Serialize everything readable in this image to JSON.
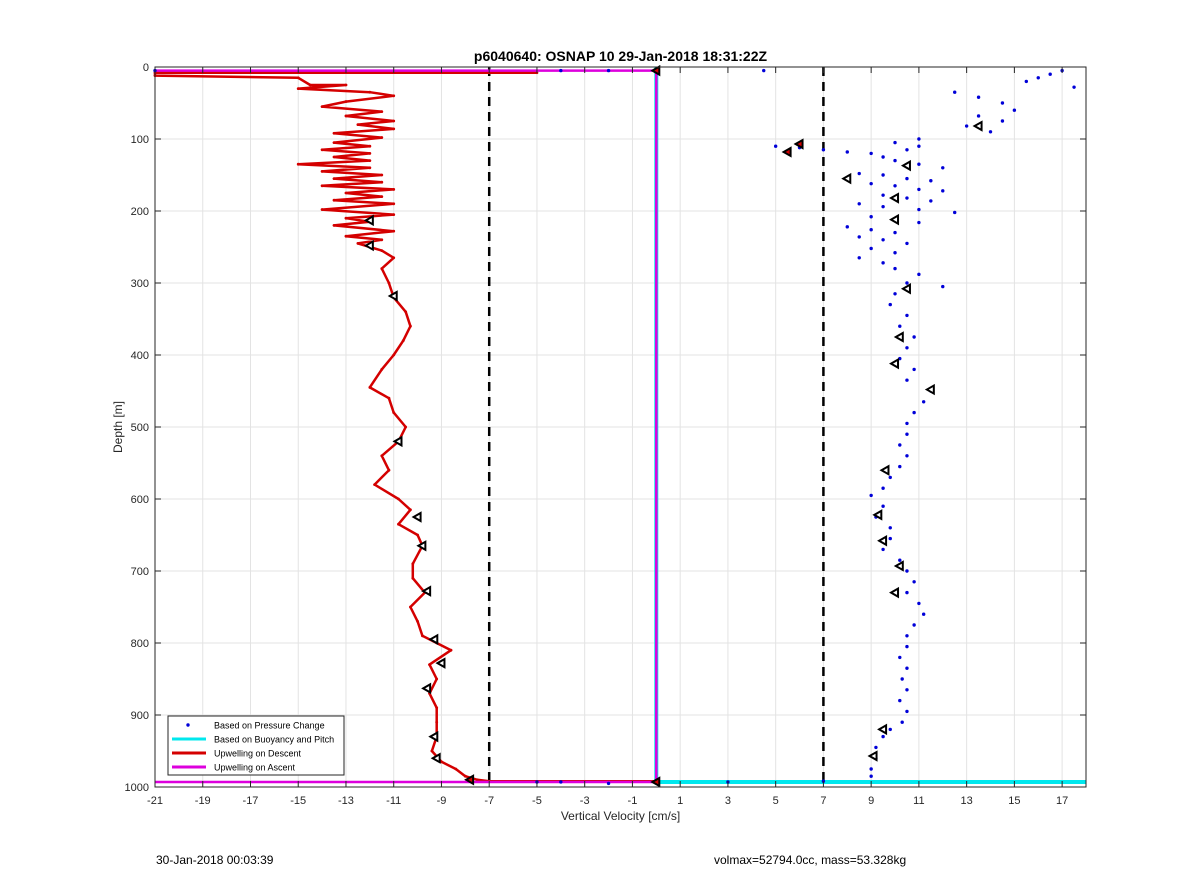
{
  "chart_data": {
    "type": "scatter",
    "title": "p6040640: OSNAP 10 29-Jan-2018 18:31:22Z",
    "xlabel": "Vertical Velocity [cm/s]",
    "ylabel": "Depth [m]",
    "xlim": [
      -21,
      18
    ],
    "ylim": [
      0,
      1000
    ],
    "y_reversed": true,
    "grid": true,
    "x_ticks": [
      -21,
      -19,
      -17,
      -15,
      -13,
      -11,
      -9,
      -7,
      -5,
      -3,
      -1,
      1,
      3,
      5,
      7,
      9,
      11,
      13,
      15,
      17
    ],
    "y_ticks": [
      0,
      100,
      200,
      300,
      400,
      500,
      600,
      700,
      800,
      900,
      1000
    ],
    "legend_position": "bottom-left",
    "colors": {
      "pressure": "#0000d8",
      "buoyancy": "#00e8ee",
      "descent": "#d40000",
      "ascent": "#dd00dd",
      "threshold": "#000000",
      "markers": "#000000",
      "grid": "#e3e3e3"
    },
    "legend": [
      {
        "label": "Based on Pressure Change",
        "style": "dot",
        "color": "#0000d8"
      },
      {
        "label": "Based on Buoyancy and Pitch",
        "style": "line",
        "color": "#00e8ee"
      },
      {
        "label": "Upwelling on Descent",
        "style": "line",
        "color": "#d40000"
      },
      {
        "label": "Upwelling on Ascent",
        "style": "line",
        "color": "#dd00dd"
      }
    ],
    "thresholds": [
      -7,
      7
    ],
    "series": [
      {
        "name": "Upwelling on Descent",
        "style": "line",
        "points": [
          [
            -5,
            8
          ],
          [
            -21,
            8
          ],
          [
            -21,
            12
          ],
          [
            -15,
            15
          ],
          [
            -14.5,
            25
          ],
          [
            -13,
            25
          ],
          [
            -15,
            30
          ],
          [
            -12,
            35
          ],
          [
            -11,
            40
          ],
          [
            -13,
            48
          ],
          [
            -14,
            55
          ],
          [
            -11.5,
            62
          ],
          [
            -13,
            68
          ],
          [
            -11,
            75
          ],
          [
            -12.5,
            80
          ],
          [
            -11,
            86
          ],
          [
            -13.5,
            92
          ],
          [
            -11.5,
            98
          ],
          [
            -13.5,
            105
          ],
          [
            -12,
            110
          ],
          [
            -14,
            115
          ],
          [
            -12,
            120
          ],
          [
            -13.5,
            125
          ],
          [
            -12,
            130
          ],
          [
            -15,
            135
          ],
          [
            -12,
            140
          ],
          [
            -14,
            145
          ],
          [
            -11.5,
            150
          ],
          [
            -13.5,
            155
          ],
          [
            -11.5,
            160
          ],
          [
            -14,
            165
          ],
          [
            -11,
            170
          ],
          [
            -13,
            175
          ],
          [
            -11.5,
            180
          ],
          [
            -13.5,
            185
          ],
          [
            -11,
            190
          ],
          [
            -14,
            198
          ],
          [
            -11,
            205
          ],
          [
            -13,
            210
          ],
          [
            -12,
            215
          ],
          [
            -13.5,
            220
          ],
          [
            -11,
            228
          ],
          [
            -13,
            235
          ],
          [
            -11.5,
            240
          ],
          [
            -12.5,
            245
          ],
          [
            -12,
            250
          ],
          [
            -11.5,
            255
          ],
          [
            -11,
            265
          ],
          [
            -11.5,
            280
          ],
          [
            -11.2,
            300
          ],
          [
            -11,
            320
          ],
          [
            -10.5,
            340
          ],
          [
            -10.3,
            360
          ],
          [
            -10.6,
            380
          ],
          [
            -11,
            400
          ],
          [
            -11.5,
            420
          ],
          [
            -12,
            445
          ],
          [
            -11.2,
            460
          ],
          [
            -11,
            480
          ],
          [
            -10.5,
            500
          ],
          [
            -10.8,
            520
          ],
          [
            -11.5,
            540
          ],
          [
            -11.2,
            560
          ],
          [
            -11.8,
            580
          ],
          [
            -10.8,
            600
          ],
          [
            -10.3,
            615
          ],
          [
            -10.8,
            635
          ],
          [
            -10,
            650
          ],
          [
            -9.8,
            665
          ],
          [
            -10.2,
            690
          ],
          [
            -10.2,
            710
          ],
          [
            -9.7,
            730
          ],
          [
            -10.3,
            750
          ],
          [
            -10,
            770
          ],
          [
            -9.8,
            790
          ],
          [
            -9.2,
            800
          ],
          [
            -8.6,
            810
          ],
          [
            -9.5,
            830
          ],
          [
            -9.2,
            850
          ],
          [
            -9.5,
            870
          ],
          [
            -9.2,
            890
          ],
          [
            -9.2,
            910
          ],
          [
            -9.2,
            930
          ],
          [
            -9.4,
            950
          ],
          [
            -9,
            965
          ],
          [
            -8.4,
            975
          ],
          [
            -8,
            985
          ],
          [
            -7.5,
            990
          ],
          [
            -7,
            992
          ],
          [
            0,
            992
          ]
        ]
      },
      {
        "name": "Upwelling on Ascent",
        "style": "line",
        "points": [
          [
            -21,
            5
          ],
          [
            0,
            5
          ],
          [
            0,
            993
          ],
          [
            -21,
            993
          ]
        ]
      },
      {
        "name": "Based on Buoyancy and Pitch",
        "style": "line",
        "points": [
          [
            0,
            0
          ],
          [
            0,
            993
          ],
          [
            18,
            993
          ]
        ]
      },
      {
        "name": "Based on Pressure Change",
        "style": "dots",
        "points": [
          [
            17,
            5
          ],
          [
            16.5,
            10
          ],
          [
            16,
            15
          ],
          [
            15.5,
            20
          ],
          [
            17.5,
            28
          ],
          [
            12.5,
            35
          ],
          [
            13.5,
            42
          ],
          [
            14.5,
            50
          ],
          [
            15,
            60
          ],
          [
            13.5,
            68
          ],
          [
            14.5,
            75
          ],
          [
            13,
            82
          ],
          [
            14,
            90
          ],
          [
            11,
            100
          ],
          [
            5,
            110
          ],
          [
            6,
            112
          ],
          [
            7,
            115
          ],
          [
            8,
            118
          ],
          [
            9,
            120
          ],
          [
            10,
            105
          ],
          [
            11,
            110
          ],
          [
            10.5,
            115
          ],
          [
            9.5,
            125
          ],
          [
            10,
            130
          ],
          [
            11,
            135
          ],
          [
            12,
            140
          ],
          [
            8.5,
            148
          ],
          [
            9.5,
            150
          ],
          [
            10.5,
            155
          ],
          [
            11.5,
            158
          ],
          [
            9,
            162
          ],
          [
            10,
            165
          ],
          [
            11,
            170
          ],
          [
            12,
            172
          ],
          [
            9.5,
            178
          ],
          [
            10.5,
            182
          ],
          [
            11.5,
            186
          ],
          [
            8.5,
            190
          ],
          [
            9.5,
            194
          ],
          [
            11,
            198
          ],
          [
            12.5,
            202
          ],
          [
            9,
            208
          ],
          [
            10,
            212
          ],
          [
            11,
            216
          ],
          [
            8,
            222
          ],
          [
            9,
            226
          ],
          [
            10,
            230
          ],
          [
            8.5,
            236
          ],
          [
            9.5,
            240
          ],
          [
            10.5,
            245
          ],
          [
            9,
            252
          ],
          [
            10,
            258
          ],
          [
            8.5,
            265
          ],
          [
            9.5,
            272
          ],
          [
            10,
            280
          ],
          [
            11,
            288
          ],
          [
            10.5,
            300
          ],
          [
            12,
            305
          ],
          [
            10,
            315
          ],
          [
            9.8,
            330
          ],
          [
            10.5,
            345
          ],
          [
            10.2,
            360
          ],
          [
            10.8,
            375
          ],
          [
            10.5,
            390
          ],
          [
            10.2,
            405
          ],
          [
            10.8,
            420
          ],
          [
            10.5,
            435
          ],
          [
            11.5,
            450
          ],
          [
            11.2,
            465
          ],
          [
            10.8,
            480
          ],
          [
            10.5,
            495
          ],
          [
            10.5,
            510
          ],
          [
            10.2,
            525
          ],
          [
            10.5,
            540
          ],
          [
            10.2,
            555
          ],
          [
            9.8,
            570
          ],
          [
            9.5,
            585
          ],
          [
            9,
            595
          ],
          [
            9.5,
            610
          ],
          [
            9.2,
            625
          ],
          [
            9.8,
            640
          ],
          [
            9.8,
            655
          ],
          [
            9.5,
            670
          ],
          [
            10.2,
            685
          ],
          [
            10.5,
            700
          ],
          [
            10.8,
            715
          ],
          [
            10.5,
            730
          ],
          [
            11,
            745
          ],
          [
            11.2,
            760
          ],
          [
            10.8,
            775
          ],
          [
            10.5,
            790
          ],
          [
            10.5,
            805
          ],
          [
            10.2,
            820
          ],
          [
            10.5,
            835
          ],
          [
            10.3,
            850
          ],
          [
            10.5,
            865
          ],
          [
            10.2,
            880
          ],
          [
            10.5,
            895
          ],
          [
            10.3,
            910
          ],
          [
            9.8,
            920
          ],
          [
            9.5,
            930
          ],
          [
            9.2,
            945
          ],
          [
            9.2,
            960
          ],
          [
            9,
            975
          ],
          [
            9,
            985
          ],
          [
            7,
            992
          ],
          [
            3,
            993
          ],
          [
            -5,
            993
          ],
          [
            -4,
            993
          ],
          [
            -2,
            995
          ],
          [
            -21,
            5
          ],
          [
            -4,
            5
          ],
          [
            -2,
            5
          ],
          [
            4.5,
            5
          ]
        ]
      }
    ],
    "markers": [
      {
        "x": 6,
        "y": 107,
        "fill": "#d40000"
      },
      {
        "x": 5.5,
        "y": 118,
        "fill": "#d40000"
      },
      {
        "x": 13.5,
        "y": 82,
        "fill": "none"
      },
      {
        "x": 8,
        "y": 155,
        "fill": "none"
      },
      {
        "x": 10.5,
        "y": 137,
        "fill": "none"
      },
      {
        "x": 10,
        "y": 182,
        "fill": "none"
      },
      {
        "x": 10,
        "y": 212,
        "fill": "none"
      },
      {
        "x": -12,
        "y": 213,
        "fill": "none"
      },
      {
        "x": -12,
        "y": 248,
        "fill": "none"
      },
      {
        "x": 10.5,
        "y": 308,
        "fill": "none"
      },
      {
        "x": -11,
        "y": 318,
        "fill": "none"
      },
      {
        "x": 10.2,
        "y": 375,
        "fill": "none"
      },
      {
        "x": 10,
        "y": 412,
        "fill": "none"
      },
      {
        "x": 11.5,
        "y": 448,
        "fill": "none"
      },
      {
        "x": -10.8,
        "y": 520,
        "fill": "none"
      },
      {
        "x": 9.6,
        "y": 560,
        "fill": "none"
      },
      {
        "x": -10,
        "y": 625,
        "fill": "none"
      },
      {
        "x": 9.3,
        "y": 622,
        "fill": "none"
      },
      {
        "x": -9.8,
        "y": 665,
        "fill": "none"
      },
      {
        "x": 9.5,
        "y": 658,
        "fill": "none"
      },
      {
        "x": 10.2,
        "y": 693,
        "fill": "none"
      },
      {
        "x": -9.6,
        "y": 728,
        "fill": "none"
      },
      {
        "x": 10,
        "y": 730,
        "fill": "none"
      },
      {
        "x": -9.3,
        "y": 795,
        "fill": "none"
      },
      {
        "x": -9,
        "y": 828,
        "fill": "none"
      },
      {
        "x": -9.6,
        "y": 863,
        "fill": "none"
      },
      {
        "x": 9.5,
        "y": 920,
        "fill": "none"
      },
      {
        "x": -9.3,
        "y": 930,
        "fill": "none"
      },
      {
        "x": 9.1,
        "y": 957,
        "fill": "none"
      },
      {
        "x": -9.2,
        "y": 960,
        "fill": "none"
      },
      {
        "x": -7.8,
        "y": 990,
        "fill": "#d40000"
      },
      {
        "x": 0,
        "y": 5,
        "fill": "#d40000"
      },
      {
        "x": 0,
        "y": 993,
        "fill": "#d40000"
      }
    ]
  },
  "footer": {
    "left": "30-Jan-2018 00:03:39",
    "right": "volmax=52794.0cc, mass=53.328kg"
  }
}
